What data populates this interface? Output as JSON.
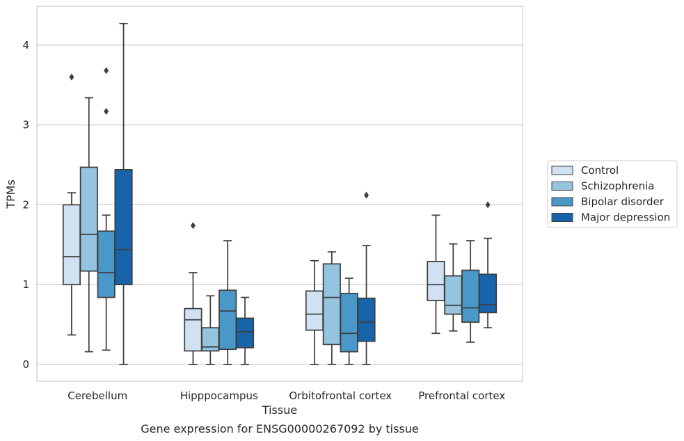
{
  "caption": "Gene expression for ENSG00000267092 by tissue",
  "chart_data": {
    "type": "box",
    "xlabel": "Tissue",
    "ylabel": "TPMs",
    "ylim": [
      -0.2,
      4.5
    ],
    "yticks": [
      0,
      1,
      2,
      3,
      4
    ],
    "grid": true,
    "legend_position": "right",
    "categories": [
      "Cerebellum",
      "Hipppocampus",
      "Orbitofrontal cortex",
      "Prefrontal cortex"
    ],
    "series": [
      {
        "name": "Control",
        "color": "#d0e1f2",
        "boxes": [
          {
            "whisker_low": 0.37,
            "q1": 1.0,
            "median": 1.35,
            "q3": 2.0,
            "whisker_high": 2.15,
            "outliers": [
              3.6
            ]
          },
          {
            "whisker_low": 0.0,
            "q1": 0.17,
            "median": 0.56,
            "q3": 0.7,
            "whisker_high": 1.15,
            "outliers": [
              1.74
            ]
          },
          {
            "whisker_low": 0.0,
            "q1": 0.43,
            "median": 0.63,
            "q3": 0.92,
            "whisker_high": 1.3,
            "outliers": []
          },
          {
            "whisker_low": 0.39,
            "q1": 0.8,
            "median": 1.0,
            "q3": 1.29,
            "whisker_high": 1.87,
            "outliers": []
          }
        ]
      },
      {
        "name": "Schizophrenia",
        "color": "#94c4df",
        "boxes": [
          {
            "whisker_low": 0.16,
            "q1": 1.17,
            "median": 1.63,
            "q3": 2.47,
            "whisker_high": 3.34,
            "outliers": []
          },
          {
            "whisker_low": 0.0,
            "q1": 0.17,
            "median": 0.22,
            "q3": 0.46,
            "whisker_high": 0.86,
            "outliers": []
          },
          {
            "whisker_low": 0.0,
            "q1": 0.25,
            "median": 0.84,
            "q3": 1.26,
            "whisker_high": 1.41,
            "outliers": []
          },
          {
            "whisker_low": 0.42,
            "q1": 0.63,
            "median": 0.74,
            "q3": 1.11,
            "whisker_high": 1.51,
            "outliers": []
          }
        ]
      },
      {
        "name": "Bipolar disorder",
        "color": "#4a98c9",
        "boxes": [
          {
            "whisker_low": 0.18,
            "q1": 0.84,
            "median": 1.15,
            "q3": 1.67,
            "whisker_high": 1.87,
            "outliers": [
              3.17,
              3.68
            ]
          },
          {
            "whisker_low": 0.0,
            "q1": 0.19,
            "median": 0.67,
            "q3": 0.93,
            "whisker_high": 1.55,
            "outliers": []
          },
          {
            "whisker_low": 0.0,
            "q1": 0.16,
            "median": 0.39,
            "q3": 0.89,
            "whisker_high": 1.08,
            "outliers": []
          },
          {
            "whisker_low": 0.28,
            "q1": 0.53,
            "median": 0.71,
            "q3": 1.18,
            "whisker_high": 1.55,
            "outliers": []
          }
        ]
      },
      {
        "name": "Major depression",
        "color": "#1764ab",
        "boxes": [
          {
            "whisker_low": 0.0,
            "q1": 1.0,
            "median": 1.44,
            "q3": 2.44,
            "whisker_high": 4.27,
            "outliers": []
          },
          {
            "whisker_low": 0.0,
            "q1": 0.21,
            "median": 0.41,
            "q3": 0.58,
            "whisker_high": 0.84,
            "outliers": []
          },
          {
            "whisker_low": 0.0,
            "q1": 0.29,
            "median": 0.53,
            "q3": 0.83,
            "whisker_high": 1.49,
            "outliers": [
              2.12
            ]
          },
          {
            "whisker_low": 0.46,
            "q1": 0.65,
            "median": 0.75,
            "q3": 1.13,
            "whisker_high": 1.58,
            "outliers": [
              2.0
            ]
          }
        ]
      }
    ]
  }
}
